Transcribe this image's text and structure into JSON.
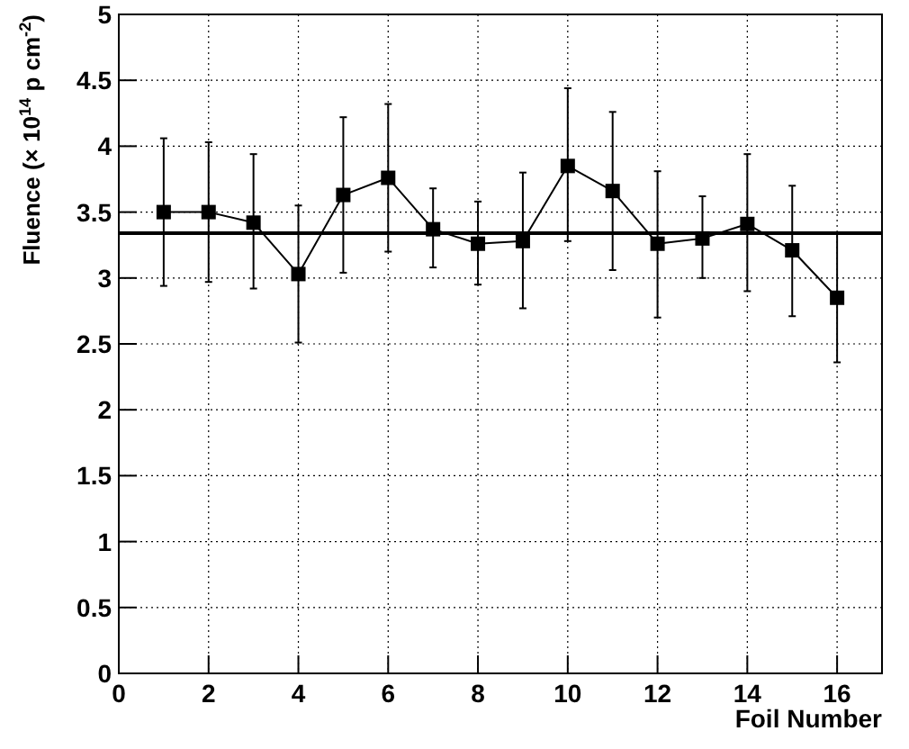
{
  "chart_data": {
    "type": "line",
    "xlabel": "Foil Number",
    "ylabel": "Fluence (× 10$^{14}$ p cm$^{-2}$)",
    "x": [
      1,
      2,
      3,
      4,
      5,
      6,
      7,
      8,
      9,
      10,
      11,
      12,
      13,
      14,
      15,
      16
    ],
    "series": [
      {
        "color": "#000000",
        "values": [
          3.5,
          3.5,
          3.42,
          3.03,
          3.63,
          3.76,
          3.37,
          3.26,
          3.28,
          3.85,
          3.66,
          3.26,
          3.3,
          3.41,
          3.21,
          2.85
        ],
        "errors": [
          [
            2.94,
            4.06
          ],
          [
            2.97,
            4.03
          ],
          [
            2.92,
            3.94
          ],
          [
            2.51,
            3.55
          ],
          [
            3.04,
            4.22
          ],
          [
            3.2,
            4.32
          ],
          [
            3.08,
            3.68
          ],
          [
            2.95,
            3.58
          ],
          [
            2.77,
            3.8
          ],
          [
            3.28,
            4.44
          ],
          [
            3.06,
            4.26
          ],
          [
            2.7,
            3.81
          ],
          [
            3.0,
            3.62
          ],
          [
            2.9,
            3.94
          ],
          [
            2.71,
            3.7
          ],
          [
            2.36,
            3.34
          ]
        ]
      }
    ],
    "ref_lines": [
      {
        "axis": "y",
        "value": 3.34,
        "color": "#000000"
      }
    ],
    "xlim": [
      0,
      17
    ],
    "xticks": [
      0,
      2,
      4,
      6,
      8,
      10,
      12,
      14,
      16
    ],
    "ylim": [
      0,
      5
    ],
    "yticks": [
      0,
      0.5,
      1,
      1.5,
      2,
      2.5,
      3,
      3.5,
      4,
      4.5,
      5
    ],
    "grid": true,
    "marker": "square",
    "line_style": "solid"
  }
}
